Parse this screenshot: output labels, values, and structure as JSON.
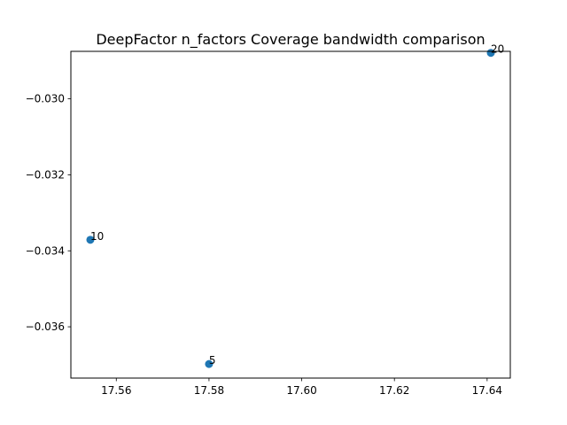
{
  "chart_data": {
    "type": "scatter",
    "title": "DeepFactor n_factors Coverage bandwidth comparison",
    "xlabel": "",
    "ylabel": "",
    "xlim": [
      17.5502,
      17.645
    ],
    "ylim": [
      -0.03735,
      -0.02875
    ],
    "xticks": [
      17.56,
      17.58,
      17.6,
      17.62,
      17.64
    ],
    "xtick_labels": [
      "17.56",
      "17.58",
      "17.60",
      "17.62",
      "17.64"
    ],
    "yticks": [
      -0.03,
      -0.032,
      -0.034,
      -0.036
    ],
    "ytick_labels": [
      "−0.030",
      "−0.032",
      "−0.034",
      "−0.036"
    ],
    "marker_color": "#1f77b4",
    "grid": false,
    "points": [
      {
        "x": 17.5544,
        "y": -0.03371,
        "label": "10"
      },
      {
        "x": 17.58,
        "y": -0.03698,
        "label": "5"
      },
      {
        "x": 17.6408,
        "y": -0.02879,
        "label": "20"
      }
    ]
  }
}
